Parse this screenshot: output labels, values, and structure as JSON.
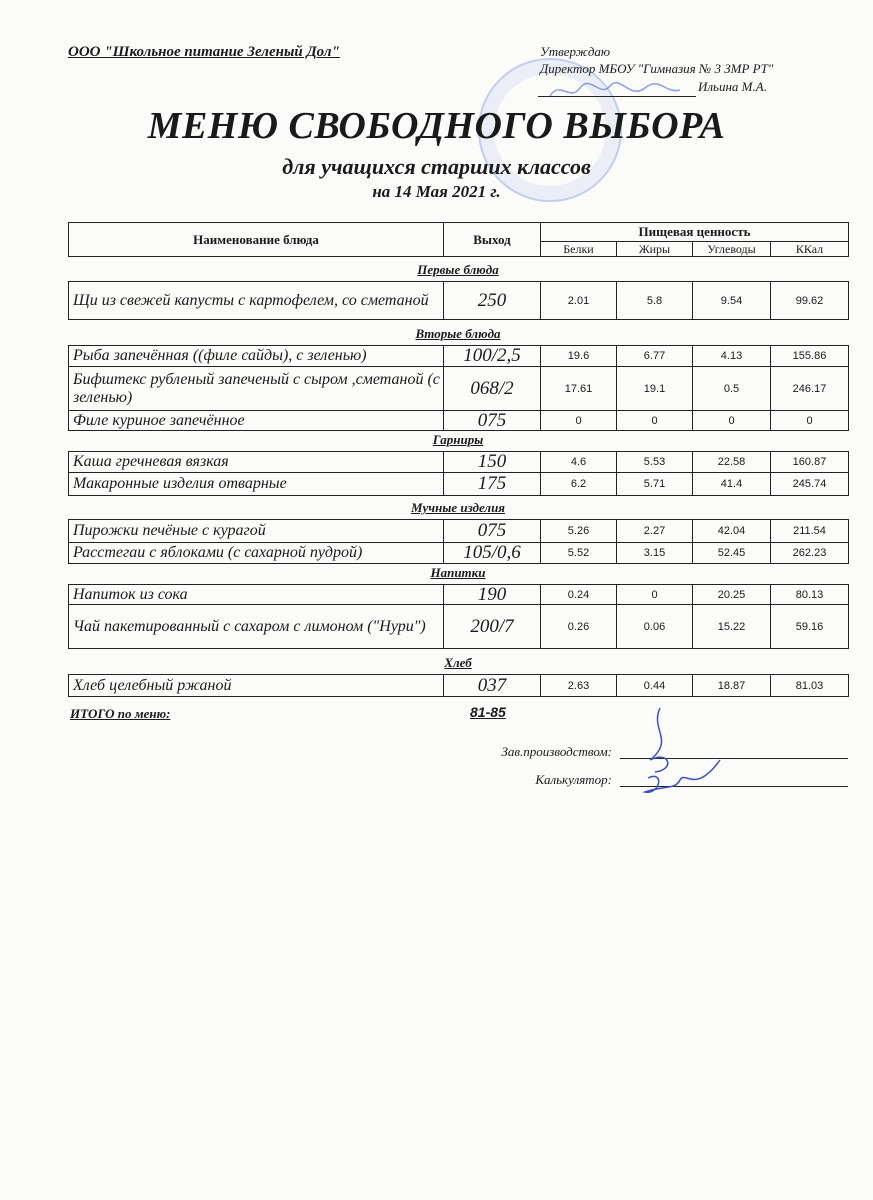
{
  "header": {
    "organization": "ООО \"Школьное питание Зеленый Дол\"",
    "approval": {
      "line1": "Утверждаю",
      "line2": "Директор МБОУ \"Гимназия № 3 ЗМР РТ\"",
      "line3": "Ильина М.А."
    },
    "title": "МЕНЮ СВОБОДНОГО ВЫБОРА",
    "subtitle": "для учащихся старших классов",
    "date": "на 14 Мая 2021 г."
  },
  "table": {
    "columns": {
      "name": "Наименование блюда",
      "output": "Выход",
      "nutrition": "Пищевая ценность",
      "proteins": "Белки",
      "fats": "Жиры",
      "carbs": "Углеводы",
      "kcal": "ККал"
    },
    "sections": [
      {
        "title": "Первые блюда",
        "rows": [
          {
            "name": "Щи из свежей капусты с картофелем, со сметаной",
            "output": "250",
            "proteins": "2.01",
            "fats": "5.8",
            "carbs": "9.54",
            "kcal": "99.62"
          }
        ]
      },
      {
        "title": "Вторые блюда",
        "rows": [
          {
            "name": "Рыба   запечённая ((филе сайды), с зеленью)",
            "output": "100/2,5",
            "proteins": "19.6",
            "fats": "6.77",
            "carbs": "4.13",
            "kcal": "155.86"
          },
          {
            "name": "Бифштекс рубленый запеченый с сыром ,сметаной (с зеленью)",
            "output": "068/2",
            "proteins": "17.61",
            "fats": "19.1",
            "carbs": "0.5",
            "kcal": "246.17"
          },
          {
            "name": "Филе куриное запечённое",
            "output": "075",
            "proteins": "0",
            "fats": "0",
            "carbs": "0",
            "kcal": "0"
          }
        ]
      },
      {
        "title": "Гарниры",
        "rows": [
          {
            "name": "Каша гречневая вязкая",
            "output": "150",
            "proteins": "4.6",
            "fats": "5.53",
            "carbs": "22.58",
            "kcal": "160.87"
          },
          {
            "name": "Макаронные изделия отварные",
            "output": "175",
            "proteins": "6.2",
            "fats": "5.71",
            "carbs": "41.4",
            "kcal": "245.74"
          }
        ]
      },
      {
        "title": "Мучные изделия",
        "rows": [
          {
            "name": "Пирожки печёные с курагой",
            "output": "075",
            "proteins": "5.26",
            "fats": "2.27",
            "carbs": "42.04",
            "kcal": "211.54"
          },
          {
            "name": "Расстегаи с яблоками (с сахарной пудрой)",
            "output": "105/0,6",
            "proteins": "5.52",
            "fats": "3.15",
            "carbs": "52.45",
            "kcal": "262.23"
          }
        ]
      },
      {
        "title": "Напитки",
        "rows": [
          {
            "name": "Напиток из сока",
            "output": "190",
            "proteins": "0.24",
            "fats": "0",
            "carbs": "20.25",
            "kcal": "80.13"
          },
          {
            "name": "Чай пакетированный с сахаром с лимоном (\"Нури\")",
            "output": "200/7",
            "proteins": "0.26",
            "fats": "0.06",
            "carbs": "15.22",
            "kcal": "59.16"
          }
        ]
      },
      {
        "title": "Хлеб",
        "rows": [
          {
            "name": "Хлеб  целебный ржаной",
            "output": "037",
            "proteins": "2.63",
            "fats": "0.44",
            "carbs": "18.87",
            "kcal": "81.03"
          }
        ]
      }
    ]
  },
  "footer": {
    "total_label": "ИТОГО по меню:",
    "total_value": "81-85",
    "production_label": "Зав.производством:",
    "calculator_label": "Калькулятор:"
  },
  "colors": {
    "ink": "#1a1a1a",
    "stamp": "#5a78dc",
    "signature": "#3a4fc4"
  }
}
